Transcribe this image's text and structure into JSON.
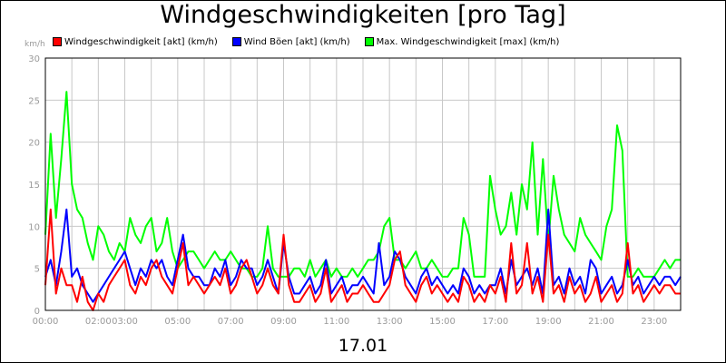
{
  "chart_data": {
    "type": "line",
    "title": "Windgeschwindigkeiten [pro Tag]",
    "ylabel": "km/h",
    "xlabel": "17.01",
    "ylim": [
      0,
      30
    ],
    "yticks": [
      0,
      5,
      10,
      15,
      20,
      25,
      30
    ],
    "xlim": [
      0,
      24
    ],
    "xticks": [
      {
        "h": 0,
        "label": "00:00"
      },
      {
        "h": 2,
        "label": "02:00"
      },
      {
        "h": 3,
        "label": "03:00"
      },
      {
        "h": 5,
        "label": "05:00"
      },
      {
        "h": 7,
        "label": "07:00"
      },
      {
        "h": 9,
        "label": "09:00"
      },
      {
        "h": 11,
        "label": "11:00"
      },
      {
        "h": 13,
        "label": "13:00"
      },
      {
        "h": 15,
        "label": "15:00"
      },
      {
        "h": 17,
        "label": "17:00"
      },
      {
        "h": 19,
        "label": "19:00"
      },
      {
        "h": 21,
        "label": "21:00"
      },
      {
        "h": 23,
        "label": "23:00"
      }
    ],
    "grid": true,
    "legend_position": "top-left",
    "series": [
      {
        "name": "Windgeschwindigkeit [akt] (km/h)",
        "color": "#ff0000",
        "x": [
          0.0,
          0.2,
          0.4,
          0.6,
          0.8,
          1.0,
          1.2,
          1.4,
          1.6,
          1.8,
          2.0,
          2.2,
          2.4,
          2.6,
          2.8,
          3.0,
          3.2,
          3.4,
          3.6,
          3.8,
          4.0,
          4.2,
          4.4,
          4.6,
          4.8,
          5.0,
          5.2,
          5.4,
          5.6,
          5.8,
          6.0,
          6.2,
          6.4,
          6.6,
          6.8,
          7.0,
          7.2,
          7.4,
          7.6,
          7.8,
          8.0,
          8.2,
          8.4,
          8.6,
          8.8,
          9.0,
          9.2,
          9.4,
          9.6,
          9.8,
          10.0,
          10.2,
          10.4,
          10.6,
          10.8,
          11.0,
          11.2,
          11.4,
          11.6,
          11.8,
          12.0,
          12.2,
          12.4,
          12.6,
          12.8,
          13.0,
          13.2,
          13.4,
          13.6,
          13.8,
          14.0,
          14.2,
          14.4,
          14.6,
          14.8,
          15.0,
          15.2,
          15.4,
          15.6,
          15.8,
          16.0,
          16.2,
          16.4,
          16.6,
          16.8,
          17.0,
          17.2,
          17.4,
          17.6,
          17.8,
          18.0,
          18.2,
          18.4,
          18.6,
          18.8,
          19.0,
          19.2,
          19.4,
          19.6,
          19.8,
          20.0,
          20.2,
          20.4,
          20.6,
          20.8,
          21.0,
          21.2,
          21.4,
          21.6,
          21.8,
          22.0,
          22.2,
          22.4,
          22.6,
          22.8,
          23.0,
          23.2,
          23.4,
          23.6,
          23.8,
          24.0
        ],
        "y": [
          3,
          12,
          2,
          5,
          3,
          3,
          1,
          4,
          1,
          0,
          2,
          1,
          3,
          4,
          5,
          6,
          3,
          2,
          4,
          3,
          5,
          6,
          4,
          3,
          2,
          5,
          8,
          3,
          4,
          3,
          2,
          3,
          4,
          3,
          5,
          2,
          3,
          5,
          6,
          4,
          2,
          3,
          5,
          3,
          2,
          9,
          3,
          1,
          1,
          2,
          3,
          1,
          2,
          5,
          1,
          2,
          3,
          1,
          2,
          2,
          3,
          2,
          1,
          1,
          2,
          3,
          6,
          7,
          3,
          2,
          1,
          3,
          4,
          2,
          3,
          2,
          1,
          2,
          1,
          4,
          3,
          1,
          2,
          1,
          3,
          2,
          4,
          1,
          8,
          2,
          3,
          8,
          2,
          4,
          1,
          9,
          2,
          3,
          1,
          4,
          2,
          3,
          1,
          2,
          4,
          1,
          2,
          3,
          1,
          2,
          8,
          2,
          3,
          1,
          2,
          3,
          2,
          3,
          3,
          2,
          2
        ]
      },
      {
        "name": "Wind Böen [akt] (km/h)",
        "color": "#0000ff",
        "x": [
          0.0,
          0.2,
          0.4,
          0.6,
          0.8,
          1.0,
          1.2,
          1.4,
          1.6,
          1.8,
          2.0,
          2.2,
          2.4,
          2.6,
          2.8,
          3.0,
          3.2,
          3.4,
          3.6,
          3.8,
          4.0,
          4.2,
          4.4,
          4.6,
          4.8,
          5.0,
          5.2,
          5.4,
          5.6,
          5.8,
          6.0,
          6.2,
          6.4,
          6.6,
          6.8,
          7.0,
          7.2,
          7.4,
          7.6,
          7.8,
          8.0,
          8.2,
          8.4,
          8.6,
          8.8,
          9.0,
          9.2,
          9.4,
          9.6,
          9.8,
          10.0,
          10.2,
          10.4,
          10.6,
          10.8,
          11.0,
          11.2,
          11.4,
          11.6,
          11.8,
          12.0,
          12.2,
          12.4,
          12.6,
          12.8,
          13.0,
          13.2,
          13.4,
          13.6,
          13.8,
          14.0,
          14.2,
          14.4,
          14.6,
          14.8,
          15.0,
          15.2,
          15.4,
          15.6,
          15.8,
          16.0,
          16.2,
          16.4,
          16.6,
          16.8,
          17.0,
          17.2,
          17.4,
          17.6,
          17.8,
          18.0,
          18.2,
          18.4,
          18.6,
          18.8,
          19.0,
          19.2,
          19.4,
          19.6,
          19.8,
          20.0,
          20.2,
          20.4,
          20.6,
          20.8,
          21.0,
          21.2,
          21.4,
          21.6,
          21.8,
          22.0,
          22.2,
          22.4,
          22.6,
          22.8,
          23.0,
          23.2,
          23.4,
          23.6,
          23.8,
          24.0
        ],
        "y": [
          4,
          6,
          3,
          7,
          12,
          4,
          5,
          3,
          2,
          1,
          2,
          3,
          4,
          5,
          6,
          7,
          5,
          3,
          5,
          4,
          6,
          5,
          6,
          4,
          3,
          6,
          9,
          5,
          4,
          4,
          3,
          3,
          5,
          4,
          6,
          3,
          4,
          6,
          5,
          5,
          3,
          4,
          6,
          4,
          2,
          8,
          4,
          2,
          2,
          3,
          4,
          2,
          3,
          6,
          2,
          3,
          4,
          2,
          3,
          3,
          4,
          3,
          2,
          8,
          3,
          4,
          7,
          6,
          4,
          3,
          2,
          4,
          5,
          3,
          4,
          3,
          2,
          3,
          2,
          5,
          4,
          2,
          3,
          2,
          3,
          3,
          5,
          2,
          6,
          3,
          4,
          5,
          3,
          5,
          2,
          12,
          3,
          4,
          2,
          5,
          3,
          4,
          2,
          6,
          5,
          2,
          3,
          4,
          2,
          3,
          6,
          3,
          4,
          2,
          3,
          4,
          3,
          4,
          4,
          3,
          4
        ]
      },
      {
        "name": "Max. Windgeschwindigkeit [max] (km/h)",
        "color": "#00ff00",
        "x": [
          0.0,
          0.2,
          0.4,
          0.6,
          0.8,
          1.0,
          1.2,
          1.4,
          1.6,
          1.8,
          2.0,
          2.2,
          2.4,
          2.6,
          2.8,
          3.0,
          3.2,
          3.4,
          3.6,
          3.8,
          4.0,
          4.2,
          4.4,
          4.6,
          4.8,
          5.0,
          5.2,
          5.4,
          5.6,
          5.8,
          6.0,
          6.2,
          6.4,
          6.6,
          6.8,
          7.0,
          7.2,
          7.4,
          7.6,
          7.8,
          8.0,
          8.2,
          8.4,
          8.6,
          8.8,
          9.0,
          9.2,
          9.4,
          9.6,
          9.8,
          10.0,
          10.2,
          10.4,
          10.6,
          10.8,
          11.0,
          11.2,
          11.4,
          11.6,
          11.8,
          12.0,
          12.2,
          12.4,
          12.6,
          12.8,
          13.0,
          13.2,
          13.4,
          13.6,
          13.8,
          14.0,
          14.2,
          14.4,
          14.6,
          14.8,
          15.0,
          15.2,
          15.4,
          15.6,
          15.8,
          16.0,
          16.2,
          16.4,
          16.6,
          16.8,
          17.0,
          17.2,
          17.4,
          17.6,
          17.8,
          18.0,
          18.2,
          18.4,
          18.6,
          18.8,
          19.0,
          19.2,
          19.4,
          19.6,
          19.8,
          20.0,
          20.2,
          20.4,
          20.6,
          20.8,
          21.0,
          21.2,
          21.4,
          21.6,
          21.8,
          22.0,
          22.2,
          22.4,
          22.6,
          22.8,
          23.0,
          23.2,
          23.4,
          23.6,
          23.8,
          24.0
        ],
        "y": [
          9,
          21,
          11,
          18,
          26,
          15,
          12,
          11,
          8,
          6,
          10,
          9,
          7,
          6,
          8,
          7,
          11,
          9,
          8,
          10,
          11,
          7,
          8,
          11,
          7,
          5,
          6,
          7,
          7,
          6,
          5,
          6,
          7,
          6,
          6,
          7,
          6,
          5,
          5,
          4,
          4,
          5,
          10,
          5,
          4,
          4,
          4,
          5,
          5,
          4,
          6,
          4,
          5,
          6,
          4,
          5,
          4,
          4,
          5,
          4,
          5,
          6,
          6,
          7,
          10,
          11,
          6,
          6,
          5,
          6,
          7,
          5,
          5,
          6,
          5,
          4,
          4,
          5,
          5,
          11,
          9,
          4,
          4,
          4,
          16,
          12,
          9,
          10,
          14,
          9,
          15,
          12,
          20,
          9,
          18,
          8,
          16,
          12,
          9,
          8,
          7,
          11,
          9,
          8,
          7,
          6,
          10,
          12,
          22,
          19,
          4,
          4,
          5,
          4,
          4,
          4,
          5,
          6,
          5,
          6,
          6
        ]
      }
    ]
  }
}
